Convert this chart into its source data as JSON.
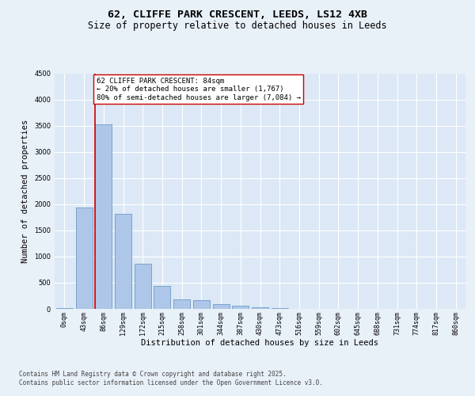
{
  "title_line1": "62, CLIFFE PARK CRESCENT, LEEDS, LS12 4XB",
  "title_line2": "Size of property relative to detached houses in Leeds",
  "xlabel": "Distribution of detached houses by size in Leeds",
  "ylabel": "Number of detached properties",
  "categories": [
    "0sqm",
    "43sqm",
    "86sqm",
    "129sqm",
    "172sqm",
    "215sqm",
    "258sqm",
    "301sqm",
    "344sqm",
    "387sqm",
    "430sqm",
    "473sqm",
    "516sqm",
    "559sqm",
    "602sqm",
    "645sqm",
    "688sqm",
    "731sqm",
    "774sqm",
    "817sqm",
    "860sqm"
  ],
  "values": [
    20,
    1940,
    3530,
    1810,
    860,
    445,
    175,
    165,
    90,
    55,
    30,
    20,
    0,
    0,
    0,
    0,
    0,
    0,
    0,
    0,
    0
  ],
  "bar_color": "#aec6e8",
  "bar_edge_color": "#5a8fc0",
  "vline_color": "#cc0000",
  "vline_x_index": 2,
  "annotation_text": "62 CLIFFE PARK CRESCENT: 84sqm\n← 20% of detached houses are smaller (1,767)\n80% of semi-detached houses are larger (7,084) →",
  "annotation_box_color": "#ffffff",
  "annotation_box_edge": "#cc0000",
  "ylim": [
    0,
    4500
  ],
  "yticks": [
    0,
    500,
    1000,
    1500,
    2000,
    2500,
    3000,
    3500,
    4000,
    4500
  ],
  "bg_color": "#e8f0f8",
  "plot_bg_color": "#dce8f5",
  "grid_color": "#ffffff",
  "footnote": "Contains HM Land Registry data © Crown copyright and database right 2025.\nContains public sector information licensed under the Open Government Licence v3.0.",
  "title_fontsize": 9.5,
  "subtitle_fontsize": 8.5,
  "axis_label_fontsize": 7.5,
  "tick_fontsize": 6,
  "annotation_fontsize": 6.5,
  "footnote_fontsize": 5.5
}
